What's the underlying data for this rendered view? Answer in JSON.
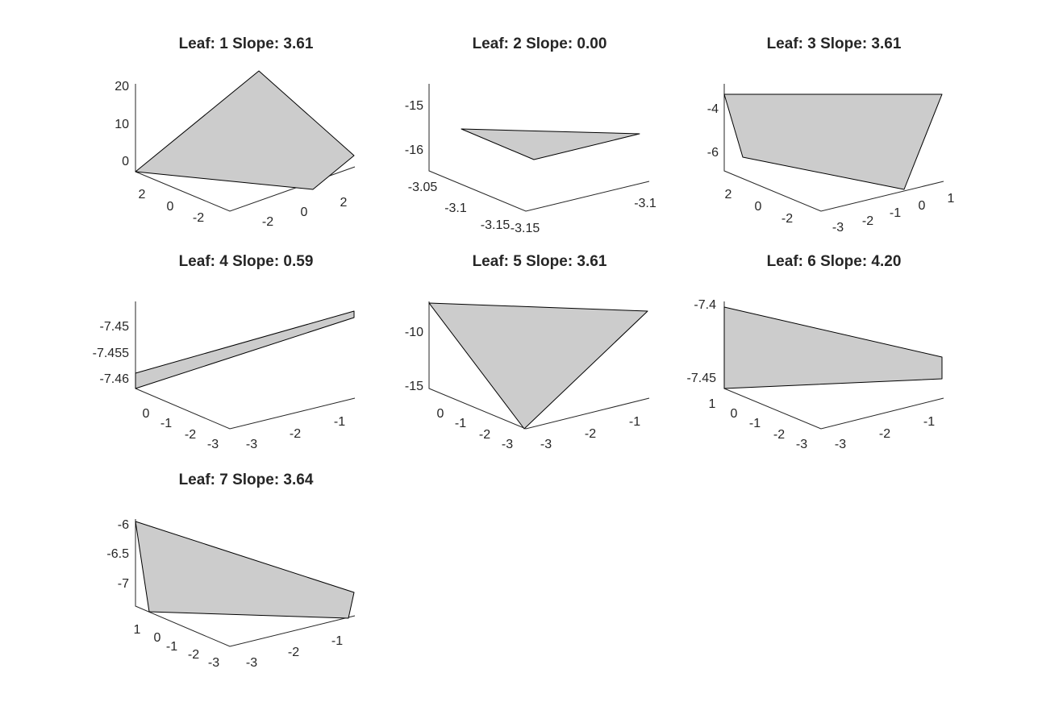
{
  "figure": {
    "background": "#ffffff",
    "face_color": "#cccccc",
    "edge_color": "#000000",
    "axis_color": "#262626"
  },
  "chart_data": [
    {
      "type": "surface-3d",
      "title": "Leaf: 1 Slope: 3.61",
      "z_ticks": [
        "20",
        "10",
        "0"
      ],
      "depth_ticks": [
        "2",
        "0",
        "-2"
      ],
      "width_ticks": [
        "-2",
        "0",
        "2"
      ],
      "grid": false
    },
    {
      "type": "surface-3d",
      "title": "Leaf: 2 Slope: 0.00",
      "z_ticks": [
        "-15",
        "-16"
      ],
      "depth_ticks": [
        "-3.05",
        "-3.1",
        "-3.15"
      ],
      "width_ticks": [
        "-3.15",
        "-3.1"
      ],
      "grid": false
    },
    {
      "type": "surface-3d",
      "title": "Leaf: 3 Slope: 3.61",
      "z_ticks": [
        "-4",
        "-6"
      ],
      "depth_ticks": [
        "2",
        "0",
        "-2"
      ],
      "width_ticks": [
        "-3",
        "-2",
        "-1",
        "0",
        "1"
      ],
      "grid": false
    },
    {
      "type": "surface-3d",
      "title": "Leaf: 4 Slope: 0.59",
      "z_ticks": [
        "-7.45",
        "-7.455",
        "-7.46"
      ],
      "depth_ticks": [
        "0",
        "-1",
        "-2",
        "-3"
      ],
      "width_ticks": [
        "-3",
        "-2",
        "-1"
      ],
      "grid": false
    },
    {
      "type": "surface-3d",
      "title": "Leaf: 5 Slope: 3.61",
      "z_ticks": [
        "-10",
        "-15"
      ],
      "depth_ticks": [
        "0",
        "-1",
        "-2",
        "-3"
      ],
      "width_ticks": [
        "-3",
        "-2",
        "-1"
      ],
      "grid": false
    },
    {
      "type": "surface-3d",
      "title": "Leaf: 6 Slope: 4.20",
      "z_ticks": [
        "-7.4",
        "-7.45"
      ],
      "depth_ticks": [
        "1",
        "0",
        "-1",
        "-2",
        "-3"
      ],
      "width_ticks": [
        "-3",
        "-2",
        "-1"
      ],
      "grid": false
    },
    {
      "type": "surface-3d",
      "title": "Leaf: 7 Slope: 3.64",
      "z_ticks": [
        "-6",
        "-6.5",
        "-7"
      ],
      "depth_ticks": [
        "1",
        "0",
        "-1",
        "-2",
        "-3"
      ],
      "width_ticks": [
        "-3",
        "-2",
        "-1"
      ],
      "grid": false
    }
  ]
}
